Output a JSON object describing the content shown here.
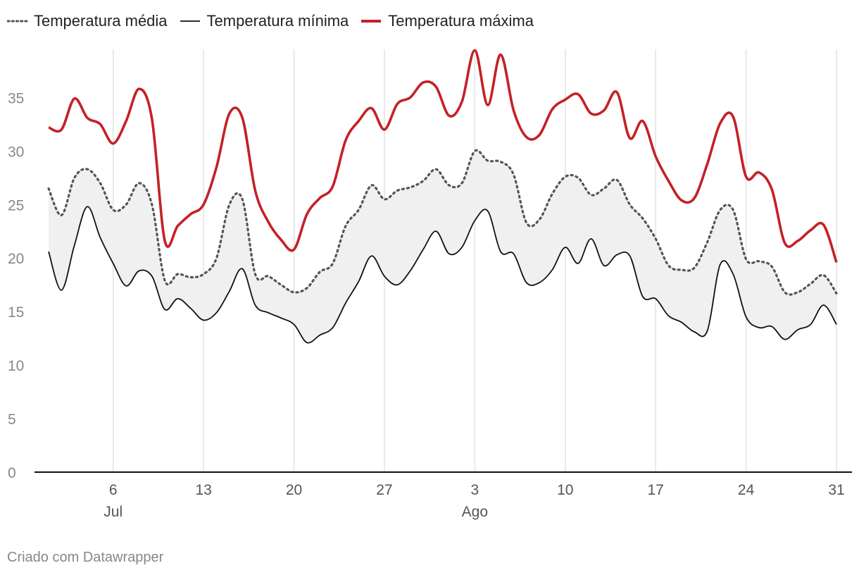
{
  "credit": "Criado com Datawrapper",
  "colors": {
    "media": "#555555",
    "minima": "#111111",
    "maxima": "#c42126",
    "band": "#f0f0f0",
    "grid": "#e2e2e2",
    "axis": "#111111"
  },
  "chart_data": {
    "type": "line",
    "x_unit": "day",
    "x_range": [
      "1 Jul",
      "31 Ago"
    ],
    "x": [
      "1 Jul",
      "2 Jul",
      "3 Jul",
      "4 Jul",
      "5 Jul",
      "6 Jul",
      "7 Jul",
      "8 Jul",
      "9 Jul",
      "10 Jul",
      "11 Jul",
      "12 Jul",
      "13 Jul",
      "14 Jul",
      "15 Jul",
      "16 Jul",
      "17 Jul",
      "18 Jul",
      "19 Jul",
      "20 Jul",
      "21 Jul",
      "22 Jul",
      "23 Jul",
      "24 Jul",
      "25 Jul",
      "26 Jul",
      "27 Jul",
      "28 Jul",
      "29 Jul",
      "30 Jul",
      "31 Jul",
      "1 Ago",
      "2 Ago",
      "3 Ago",
      "4 Ago",
      "5 Ago",
      "6 Ago",
      "7 Ago",
      "8 Ago",
      "9 Ago",
      "10 Ago",
      "11 Ago",
      "12 Ago",
      "13 Ago",
      "14 Ago",
      "15 Ago",
      "16 Ago",
      "17 Ago",
      "18 Ago",
      "19 Ago",
      "20 Ago",
      "21 Ago",
      "22 Ago",
      "23 Ago",
      "24 Ago",
      "25 Ago",
      "26 Ago",
      "27 Ago",
      "28 Ago",
      "29 Ago",
      "30 Ago",
      "31 Ago"
    ],
    "series": [
      {
        "name": "Temperatura média",
        "key": "media",
        "style": "dotted",
        "values": [
          26.5,
          24.0,
          27.5,
          28.3,
          27.0,
          24.5,
          25.0,
          27.0,
          25.0,
          17.9,
          18.5,
          18.2,
          18.5,
          20.0,
          25.0,
          25.5,
          18.5,
          18.3,
          17.5,
          16.8,
          17.2,
          18.7,
          19.5,
          23.0,
          24.5,
          26.8,
          25.5,
          26.3,
          26.6,
          27.2,
          28.3,
          26.8,
          27.0,
          30.0,
          29.1,
          29.0,
          27.8,
          23.3,
          23.6,
          26.0,
          27.6,
          27.5,
          25.9,
          26.5,
          27.3,
          25.0,
          23.7,
          21.8,
          19.3,
          18.9,
          19.1,
          21.5,
          24.5,
          24.5,
          19.9,
          19.7,
          19.2,
          16.8,
          16.8,
          17.6,
          18.4,
          16.7
        ]
      },
      {
        "name": "Temperatura mínima",
        "key": "minima",
        "style": "solid-thin",
        "values": [
          20.6,
          17.0,
          21.2,
          24.8,
          21.9,
          19.5,
          17.4,
          18.8,
          18.3,
          15.2,
          16.2,
          15.3,
          14.2,
          14.9,
          16.9,
          19.0,
          15.6,
          14.9,
          14.4,
          13.8,
          12.1,
          12.8,
          13.5,
          15.8,
          17.8,
          20.2,
          18.3,
          17.5,
          18.8,
          20.8,
          22.5,
          20.4,
          21.0,
          23.5,
          24.4,
          20.6,
          20.4,
          17.7,
          17.7,
          18.9,
          21.0,
          19.5,
          21.8,
          19.3,
          20.3,
          20.2,
          16.4,
          16.2,
          14.6,
          14.0,
          13.1,
          13.2,
          19.4,
          18.5,
          14.5,
          13.5,
          13.6,
          12.4,
          13.3,
          13.8,
          15.6,
          13.8
        ]
      },
      {
        "name": "Temperatura máxima",
        "key": "maxima",
        "style": "solid-thick",
        "values": [
          32.2,
          32.0,
          34.9,
          33.1,
          32.5,
          30.7,
          32.8,
          35.8,
          33.0,
          21.6,
          23.0,
          24.1,
          25.0,
          28.5,
          33.5,
          33.1,
          26.3,
          23.4,
          21.7,
          20.8,
          24.1,
          25.6,
          26.7,
          31.0,
          32.8,
          34.0,
          32.0,
          34.4,
          35.0,
          36.4,
          36.0,
          33.3,
          34.6,
          39.4,
          34.3,
          39.0,
          33.8,
          31.3,
          31.5,
          33.9,
          34.8,
          35.3,
          33.5,
          33.8,
          35.5,
          31.2,
          32.8,
          29.5,
          27.2,
          25.4,
          25.6,
          28.8,
          32.6,
          33.2,
          27.6,
          28.0,
          26.4,
          21.4,
          21.6,
          22.6,
          23.1,
          19.6
        ]
      }
    ],
    "band": {
      "between": [
        "minima",
        "media"
      ]
    },
    "ylim": [
      0,
      39.5
    ],
    "yticks": [
      0,
      5,
      10,
      15,
      20,
      25,
      30,
      35
    ],
    "xticks": [
      {
        "day": 6,
        "label": "6",
        "month": "Jul"
      },
      {
        "day": 13,
        "label": "13"
      },
      {
        "day": 20,
        "label": "20"
      },
      {
        "day": 27,
        "label": "27"
      },
      {
        "day": 34,
        "label": "3",
        "month": "Ago"
      },
      {
        "day": 41,
        "label": "10"
      },
      {
        "day": 48,
        "label": "17"
      },
      {
        "day": 55,
        "label": "24"
      },
      {
        "day": 62,
        "label": "31"
      }
    ],
    "grid": "vertical",
    "legend_position": "top-left"
  }
}
